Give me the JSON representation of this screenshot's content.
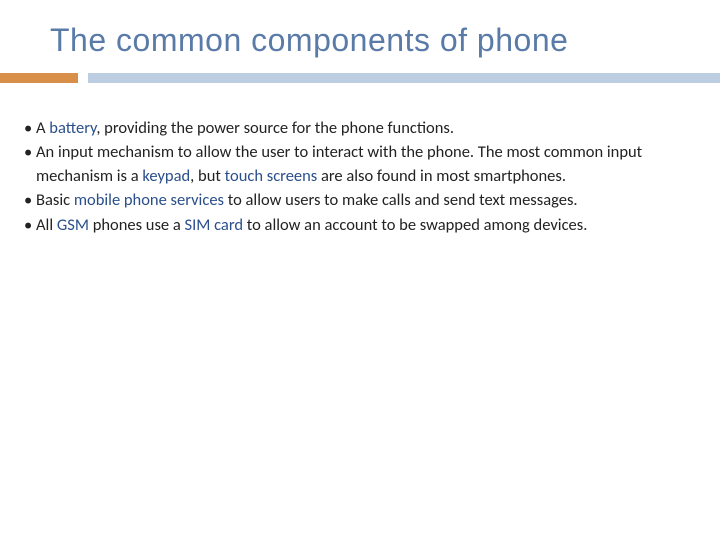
{
  "title": "The common components of phone",
  "colors": {
    "title_color": "#5a7ba8",
    "accent_bar": "#d78f4a",
    "main_bar": "#becee2",
    "background": "#ffffff",
    "body_text": "#222222",
    "link_color": "#2a4f8a"
  },
  "typography": {
    "title_font": "Century Gothic",
    "title_size_pt": 24,
    "body_font": "Calibri",
    "body_size_pt": 12
  },
  "bullets": [
    {
      "segments": [
        {
          "text": "A ",
          "link": false
        },
        {
          "text": "battery",
          "link": true
        },
        {
          "text": ", providing the power source for the phone functions.",
          "link": false
        }
      ]
    },
    {
      "segments": [
        {
          "text": "An input mechanism to allow the user to interact with the phone. The most common input mechanism is a ",
          "link": false
        },
        {
          "text": "keypad",
          "link": true
        },
        {
          "text": ", but ",
          "link": false
        },
        {
          "text": "touch screens",
          "link": true
        },
        {
          "text": " are also found in most smartphones.",
          "link": false
        }
      ]
    },
    {
      "segments": [
        {
          "text": "Basic ",
          "link": false
        },
        {
          "text": "mobile phone services",
          "link": true
        },
        {
          "text": " to allow users to make calls and send text messages.",
          "link": false
        }
      ]
    },
    {
      "segments": [
        {
          "text": "All ",
          "link": false
        },
        {
          "text": "GSM",
          "link": true
        },
        {
          "text": " phones use a ",
          "link": false
        },
        {
          "text": "SIM card",
          "link": true
        },
        {
          "text": " to allow an account to be swapped among devices.",
          "link": false
        }
      ]
    }
  ]
}
